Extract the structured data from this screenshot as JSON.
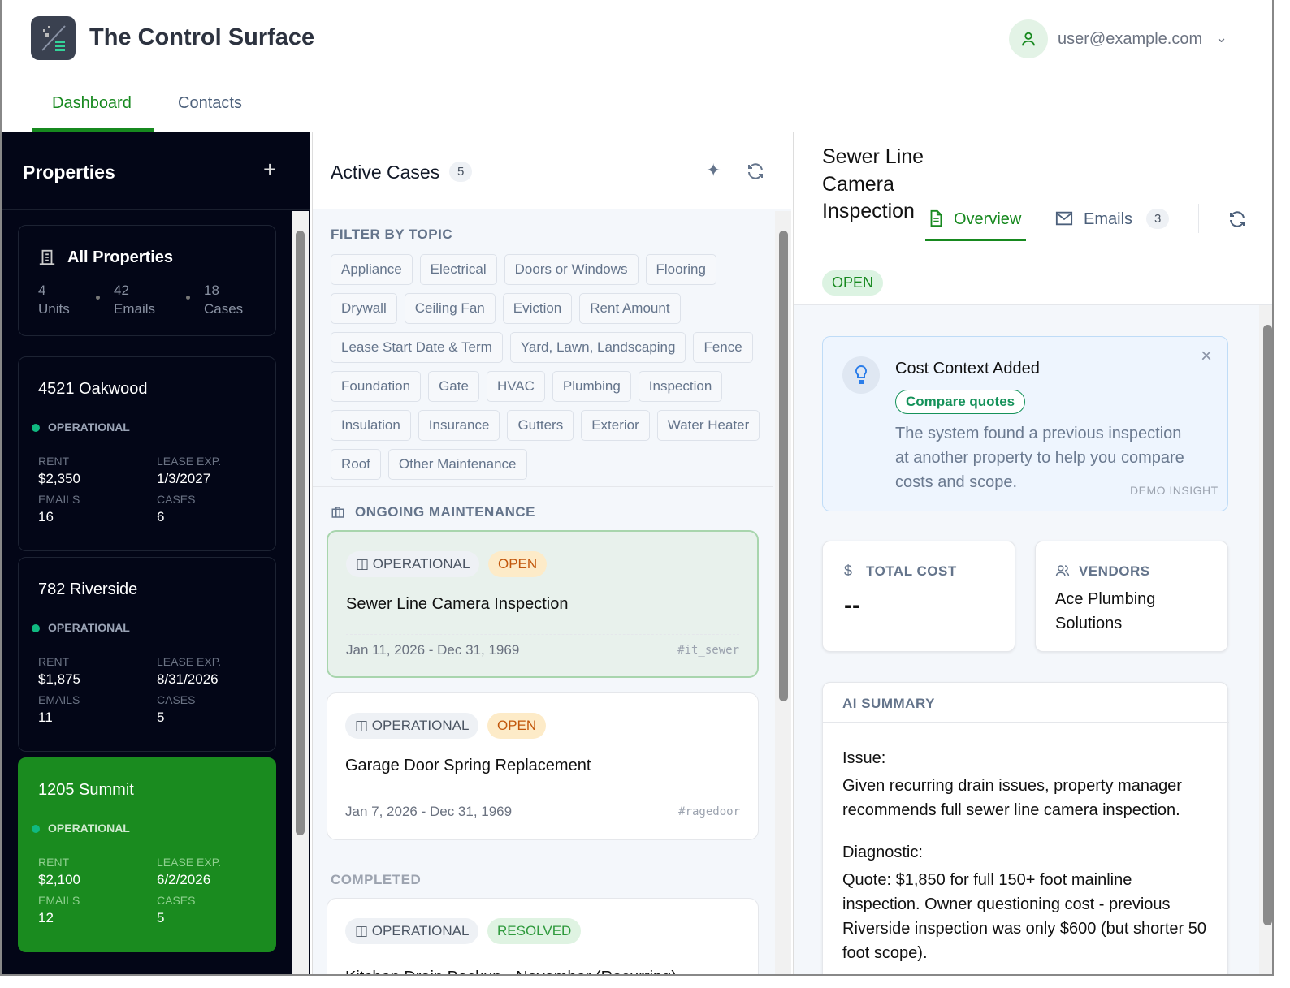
{
  "app": {
    "title": "The Control Surface",
    "user": "user@example.com"
  },
  "nav": {
    "tabs": [
      {
        "label": "Dashboard",
        "active": true
      },
      {
        "label": "Contacts",
        "active": false
      }
    ]
  },
  "colors": {
    "accent": "#17891f",
    "sidebar_bg": "#030617",
    "open": "#c2570c",
    "resolved": "#2f9a3d"
  },
  "properties": {
    "title": "Properties",
    "all": {
      "label": "All Properties",
      "units": "4",
      "units_label": "Units",
      "emails": "42",
      "emails_label": "Emails",
      "cases": "18",
      "cases_label": "Cases"
    },
    "labels": {
      "rent": "RENT",
      "lease": "LEASE EXP.",
      "emails": "EMAILS",
      "cases": "CASES"
    },
    "items": [
      {
        "name": "4521 Oakwood",
        "status": "OPERATIONAL",
        "rent": "$2,350",
        "lease": "1/3/2027",
        "emails": "16",
        "cases": "6"
      },
      {
        "name": "782 Riverside",
        "status": "OPERATIONAL",
        "rent": "$1,875",
        "lease": "8/31/2026",
        "emails": "11",
        "cases": "5"
      },
      {
        "name": "1205 Summit",
        "status": "OPERATIONAL",
        "rent": "$2,100",
        "lease": "6/2/2026",
        "emails": "12",
        "cases": "5",
        "selected": true
      }
    ]
  },
  "cases": {
    "title": "Active Cases",
    "count": "5",
    "filter_label": "FILTER BY TOPIC",
    "topics": [
      "Appliance",
      "Electrical",
      "Doors or Windows",
      "Flooring",
      "Drywall",
      "Ceiling Fan",
      "Eviction",
      "Rent Amount",
      "Lease Start Date & Term",
      "Yard, Lawn, Landscaping",
      "Fence",
      "Foundation",
      "Gate",
      "HVAC",
      "Plumbing",
      "Inspection",
      "Insulation",
      "Insurance",
      "Gutters",
      "Exterior",
      "Water Heater",
      "Roof",
      "Other Maintenance"
    ],
    "ongoing_label": "ONGOING MAINTENANCE",
    "completed_label": "COMPLETED",
    "ongoing": [
      {
        "category": "OPERATIONAL",
        "status": "OPEN",
        "title": "Sewer Line Camera Inspection",
        "dates": "Jan 11, 2026 - Dec 31, 1969",
        "tag": "#it_sewer"
      },
      {
        "category": "OPERATIONAL",
        "status": "OPEN",
        "title": "Garage Door Spring Replacement",
        "dates": "Jan 7, 2026 - Dec 31, 1969",
        "tag": "#ragedoor"
      }
    ],
    "completed": [
      {
        "category": "OPERATIONAL",
        "status": "RESOLVED",
        "title": "Kitchen Drain Backup - November (Recurring)"
      }
    ]
  },
  "detail": {
    "title": "Sewer Line Camera Inspection",
    "status": "OPEN",
    "tabs": {
      "overview": "Overview",
      "emails": "Emails",
      "emails_count": "3"
    },
    "insight": {
      "title": "Cost Context Added",
      "action": "Compare quotes",
      "text": "The system found a previous inspection at another property to help you compare costs and scope.",
      "tag": "DEMO INSIGHT"
    },
    "total_cost": {
      "label": "TOTAL COST",
      "value": "--"
    },
    "vendors": {
      "label": "VENDORS",
      "value": "Ace Plumbing Solutions"
    },
    "summary": {
      "label": "AI SUMMARY",
      "issue_label": "Issue:",
      "issue": "Given recurring drain issues, property manager recommends full sewer line camera inspection.",
      "diag_label": "Diagnostic:",
      "diag": "Quote: $1,850 for full 150+ foot mainline inspection. Owner questioning cost - previous Riverside inspection was only $600 (but shorter 50 foot scope)."
    }
  }
}
